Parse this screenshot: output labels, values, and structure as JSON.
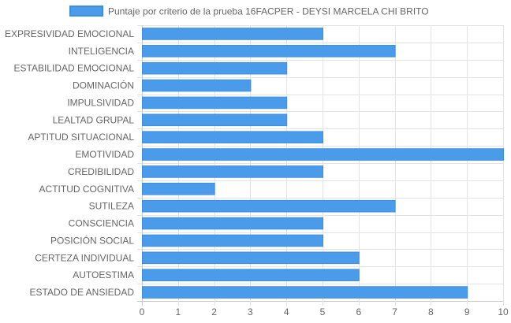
{
  "chart_data": {
    "type": "bar",
    "orientation": "horizontal",
    "categories": [
      "EXPRESIVIDAD EMOCIONAL",
      "INTELIGENCIA",
      "ESTABILIDAD EMOCIONAL",
      "DOMINACIÓN",
      "IMPULSIVIDAD",
      "LEALTAD GRUPAL",
      "APTITUD SITUACIONAL",
      "EMOTIVIDAD",
      "CREDIBILIDAD",
      "ACTITUD COGNITIVA",
      "SUTILEZA",
      "CONSCIENCIA",
      "POSICIÓN SOCIAL",
      "CERTEZA INDIVIDUAL",
      "AUTOESTIMA",
      "ESTADO DE ANSIEDAD"
    ],
    "series": [
      {
        "name": "Puntaje por criterio de la prueba 16FACPER - DEYSI MARCELA CHI BRITO",
        "values": [
          5,
          7,
          4,
          3,
          4,
          4,
          5,
          10,
          5,
          2,
          7,
          5,
          5,
          6,
          6,
          9
        ],
        "color": "#4a9cea",
        "border_color": "#3f8fe0"
      }
    ],
    "xlim": [
      0,
      10
    ],
    "x_ticks": [
      "0",
      "1",
      "2",
      "3",
      "4",
      "5",
      "6",
      "7",
      "8",
      "9",
      "10"
    ],
    "grid": true,
    "legend_position": "top",
    "title": "",
    "xlabel": "",
    "ylabel": ""
  }
}
